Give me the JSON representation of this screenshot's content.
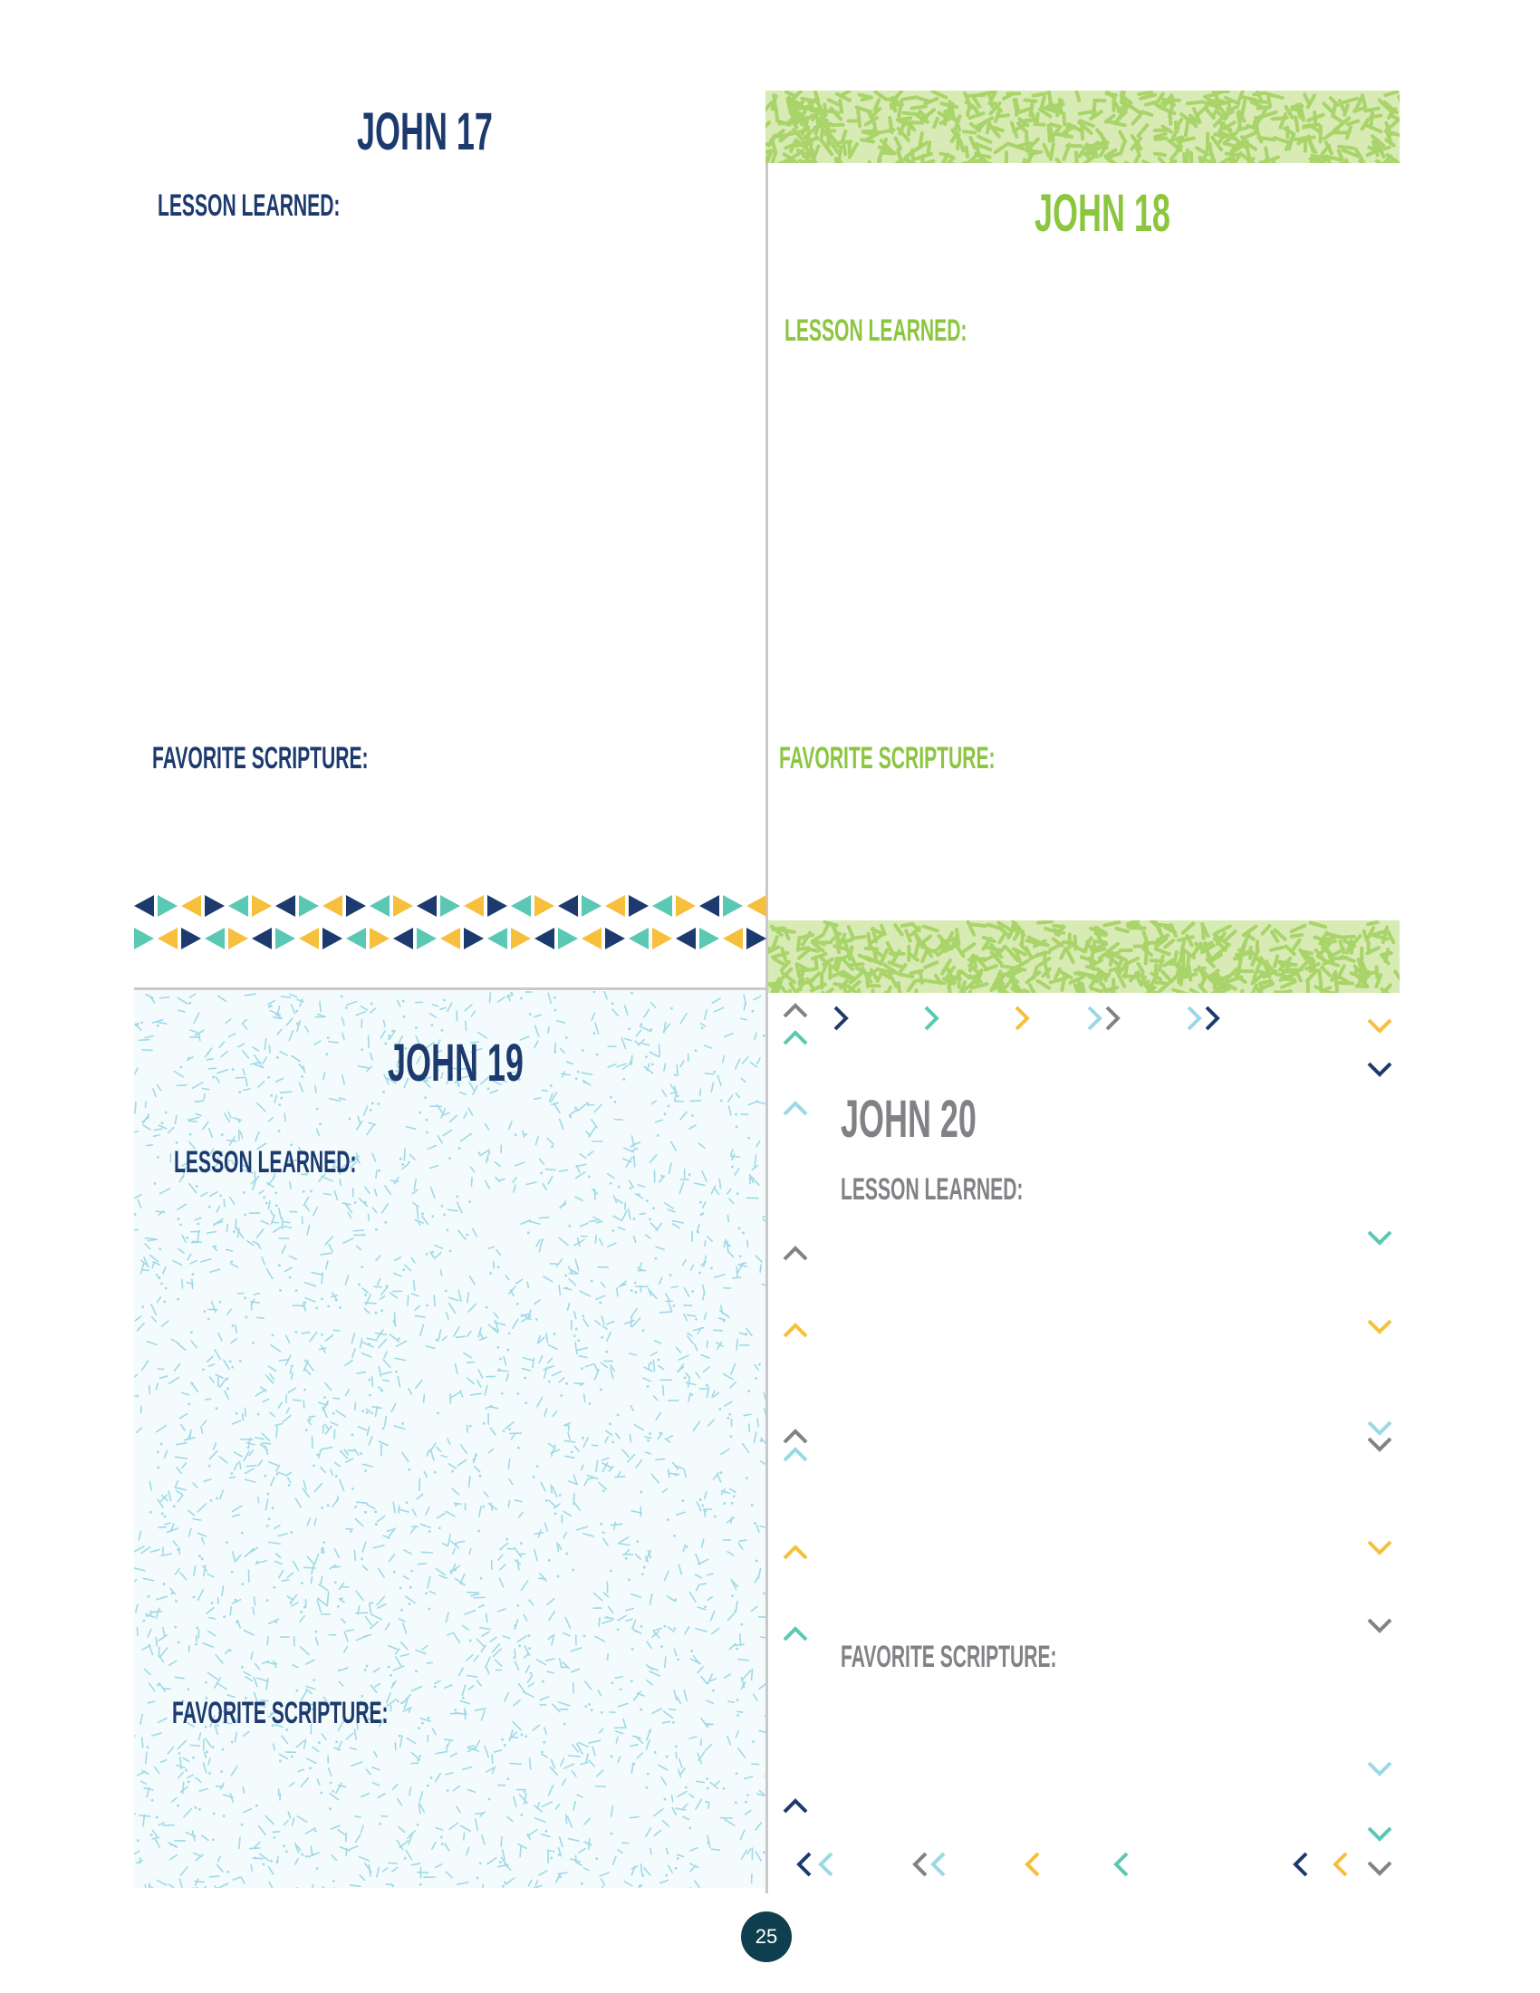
{
  "sections": {
    "john17": {
      "title": "JOHN 17",
      "lesson_label": "LESSON LEARNED:",
      "scripture_label": "FAVORITE SCRIPTURE:"
    },
    "john18": {
      "title": "JOHN 18",
      "lesson_label": "LESSON LEARNED:",
      "scripture_label": "FAVORITE SCRIPTURE:"
    },
    "john19": {
      "title": "JOHN 19",
      "lesson_label": "LESSON LEARNED:",
      "scripture_label": "FAVORITE SCRIPTURE:"
    },
    "john20": {
      "title": "JOHN 20",
      "lesson_label": "LESSON LEARNED:",
      "scripture_label": "FAVORITE SCRIPTURE:"
    }
  },
  "page_number": "25",
  "colors": {
    "navy": "#1d3a6e",
    "green": "#8cc63f",
    "gray": "#808285",
    "teal": "#5bc8b4",
    "yellow": "#f6bf3c",
    "light_blue": "#9ad8e8"
  }
}
